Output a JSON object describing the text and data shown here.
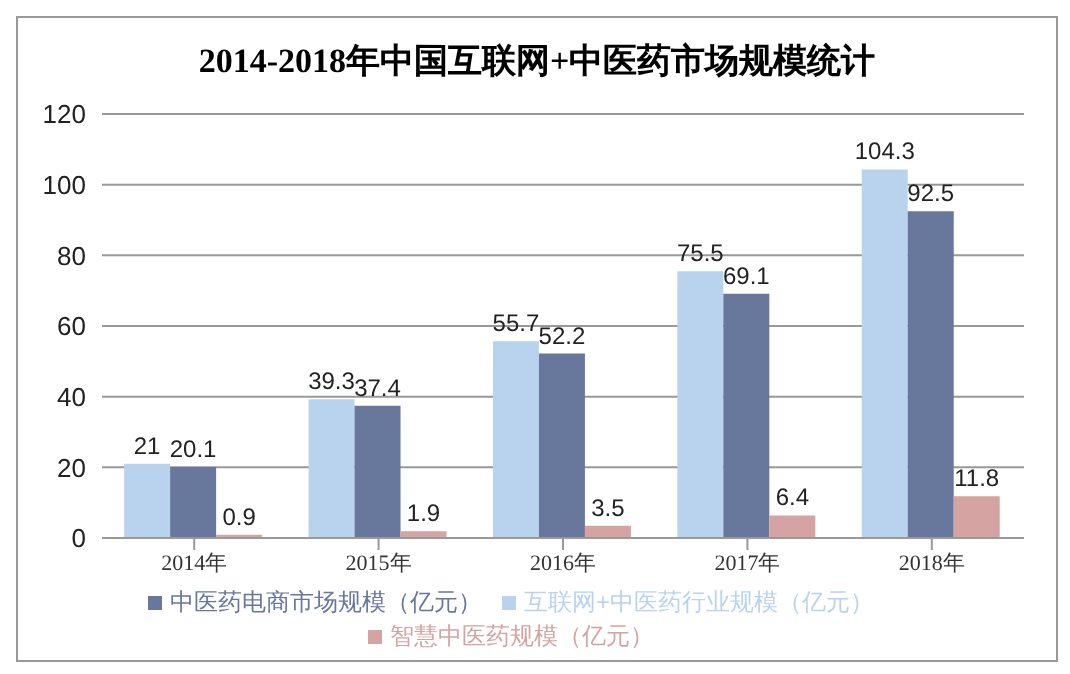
{
  "chart_data": {
    "type": "bar",
    "title": "2014-2018年中国互联网+中医药市场规模统计",
    "categories": [
      "2014年",
      "2015年",
      "2016年",
      "2017年",
      "2018年"
    ],
    "series": [
      {
        "name": "互联网+中医药行业规模（亿元）",
        "color": "#b9d3ef",
        "values": [
          21,
          39.3,
          55.7,
          75.5,
          104.3
        ]
      },
      {
        "name": "中医药电商市场规模（亿元）",
        "color": "#68779c",
        "values": [
          20.1,
          37.4,
          52.2,
          69.1,
          92.5
        ]
      },
      {
        "name": "智慧中医药规模（亿元）",
        "color": "#d6a3a3",
        "values": [
          0.9,
          1.9,
          3.5,
          6.4,
          11.8
        ]
      }
    ],
    "ylim": [
      0,
      120
    ],
    "yticks": [
      0,
      20,
      40,
      60,
      80,
      100,
      120
    ],
    "grid": "y",
    "legend": "bottom",
    "data_labels": true
  }
}
